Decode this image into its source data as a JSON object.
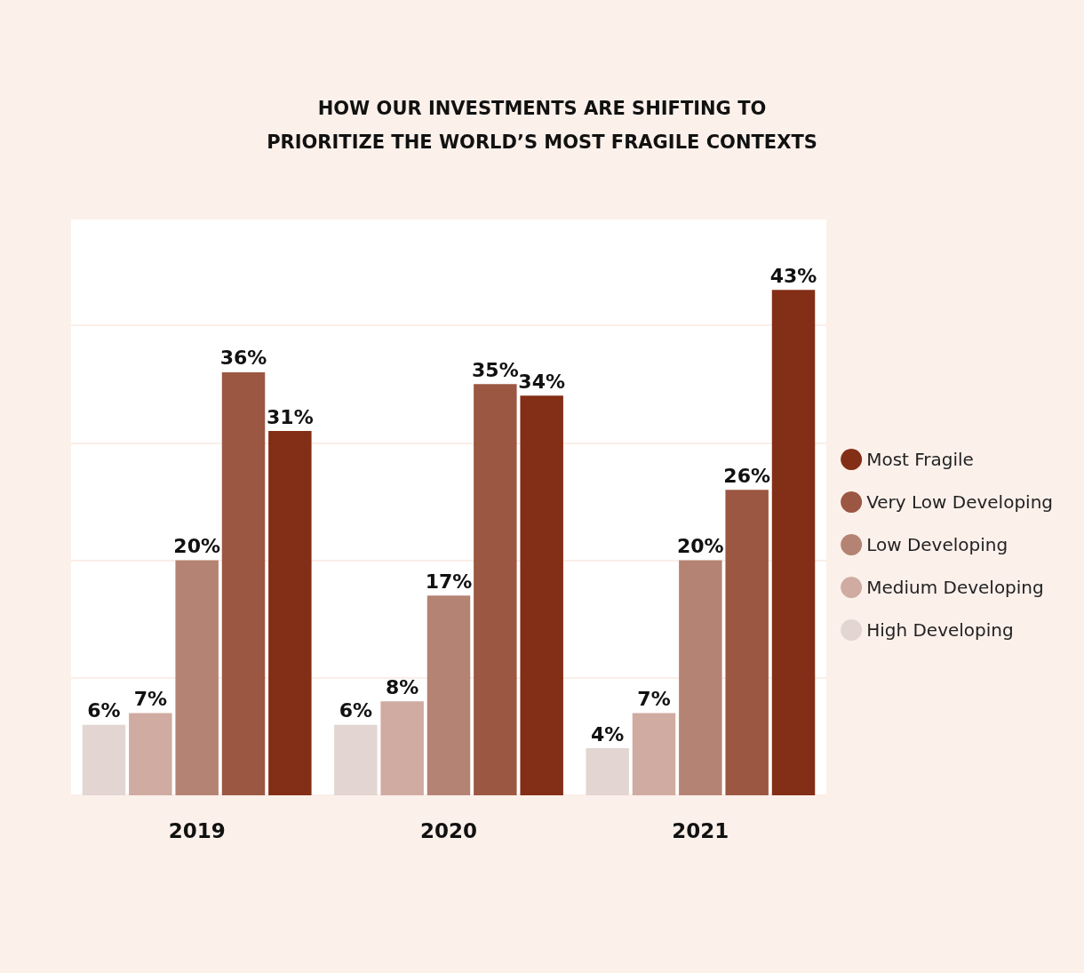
{
  "chart_data": {
    "type": "bar",
    "title": "HOW OUR INVESTMENTS ARE SHIFTING TO\nPRIORITIZE THE WORLD’S MOST FRAGILE CONTEXTS",
    "categories": [
      "2019",
      "2020",
      "2021"
    ],
    "series": [
      {
        "name": "High Developing",
        "color": "#e3d5d1",
        "values": [
          6,
          6,
          4
        ],
        "value_labels": [
          "6%",
          "6%",
          "4%"
        ]
      },
      {
        "name": "Medium Developing",
        "color": "#d0aba1",
        "values": [
          7,
          8,
          7
        ],
        "value_labels": [
          "7%",
          "8%",
          "7%"
        ]
      },
      {
        "name": "Low Developing",
        "color": "#b58373",
        "values": [
          20,
          17,
          20
        ],
        "value_labels": [
          "20%",
          "17%",
          "20%"
        ]
      },
      {
        "name": "Very Low Developing",
        "color": "#9b5742",
        "values": [
          36,
          35,
          26
        ],
        "value_labels": [
          "36%",
          "35%",
          "26%"
        ]
      },
      {
        "name": "Most Fragile",
        "color": "#832e16",
        "values": [
          31,
          34,
          43
        ],
        "value_labels": [
          "31%",
          "34%",
          "43%"
        ]
      }
    ],
    "ylim": [
      0,
      49
    ],
    "yticks": [
      {
        "value": 0,
        "label": null
      },
      {
        "value": 10,
        "label": null
      },
      {
        "value": 20,
        "label": null
      },
      {
        "value": 30,
        "label": null
      },
      {
        "value": 40,
        "label": null
      }
    ],
    "grid": "y",
    "legend": "right",
    "tick_labels": "x"
  }
}
